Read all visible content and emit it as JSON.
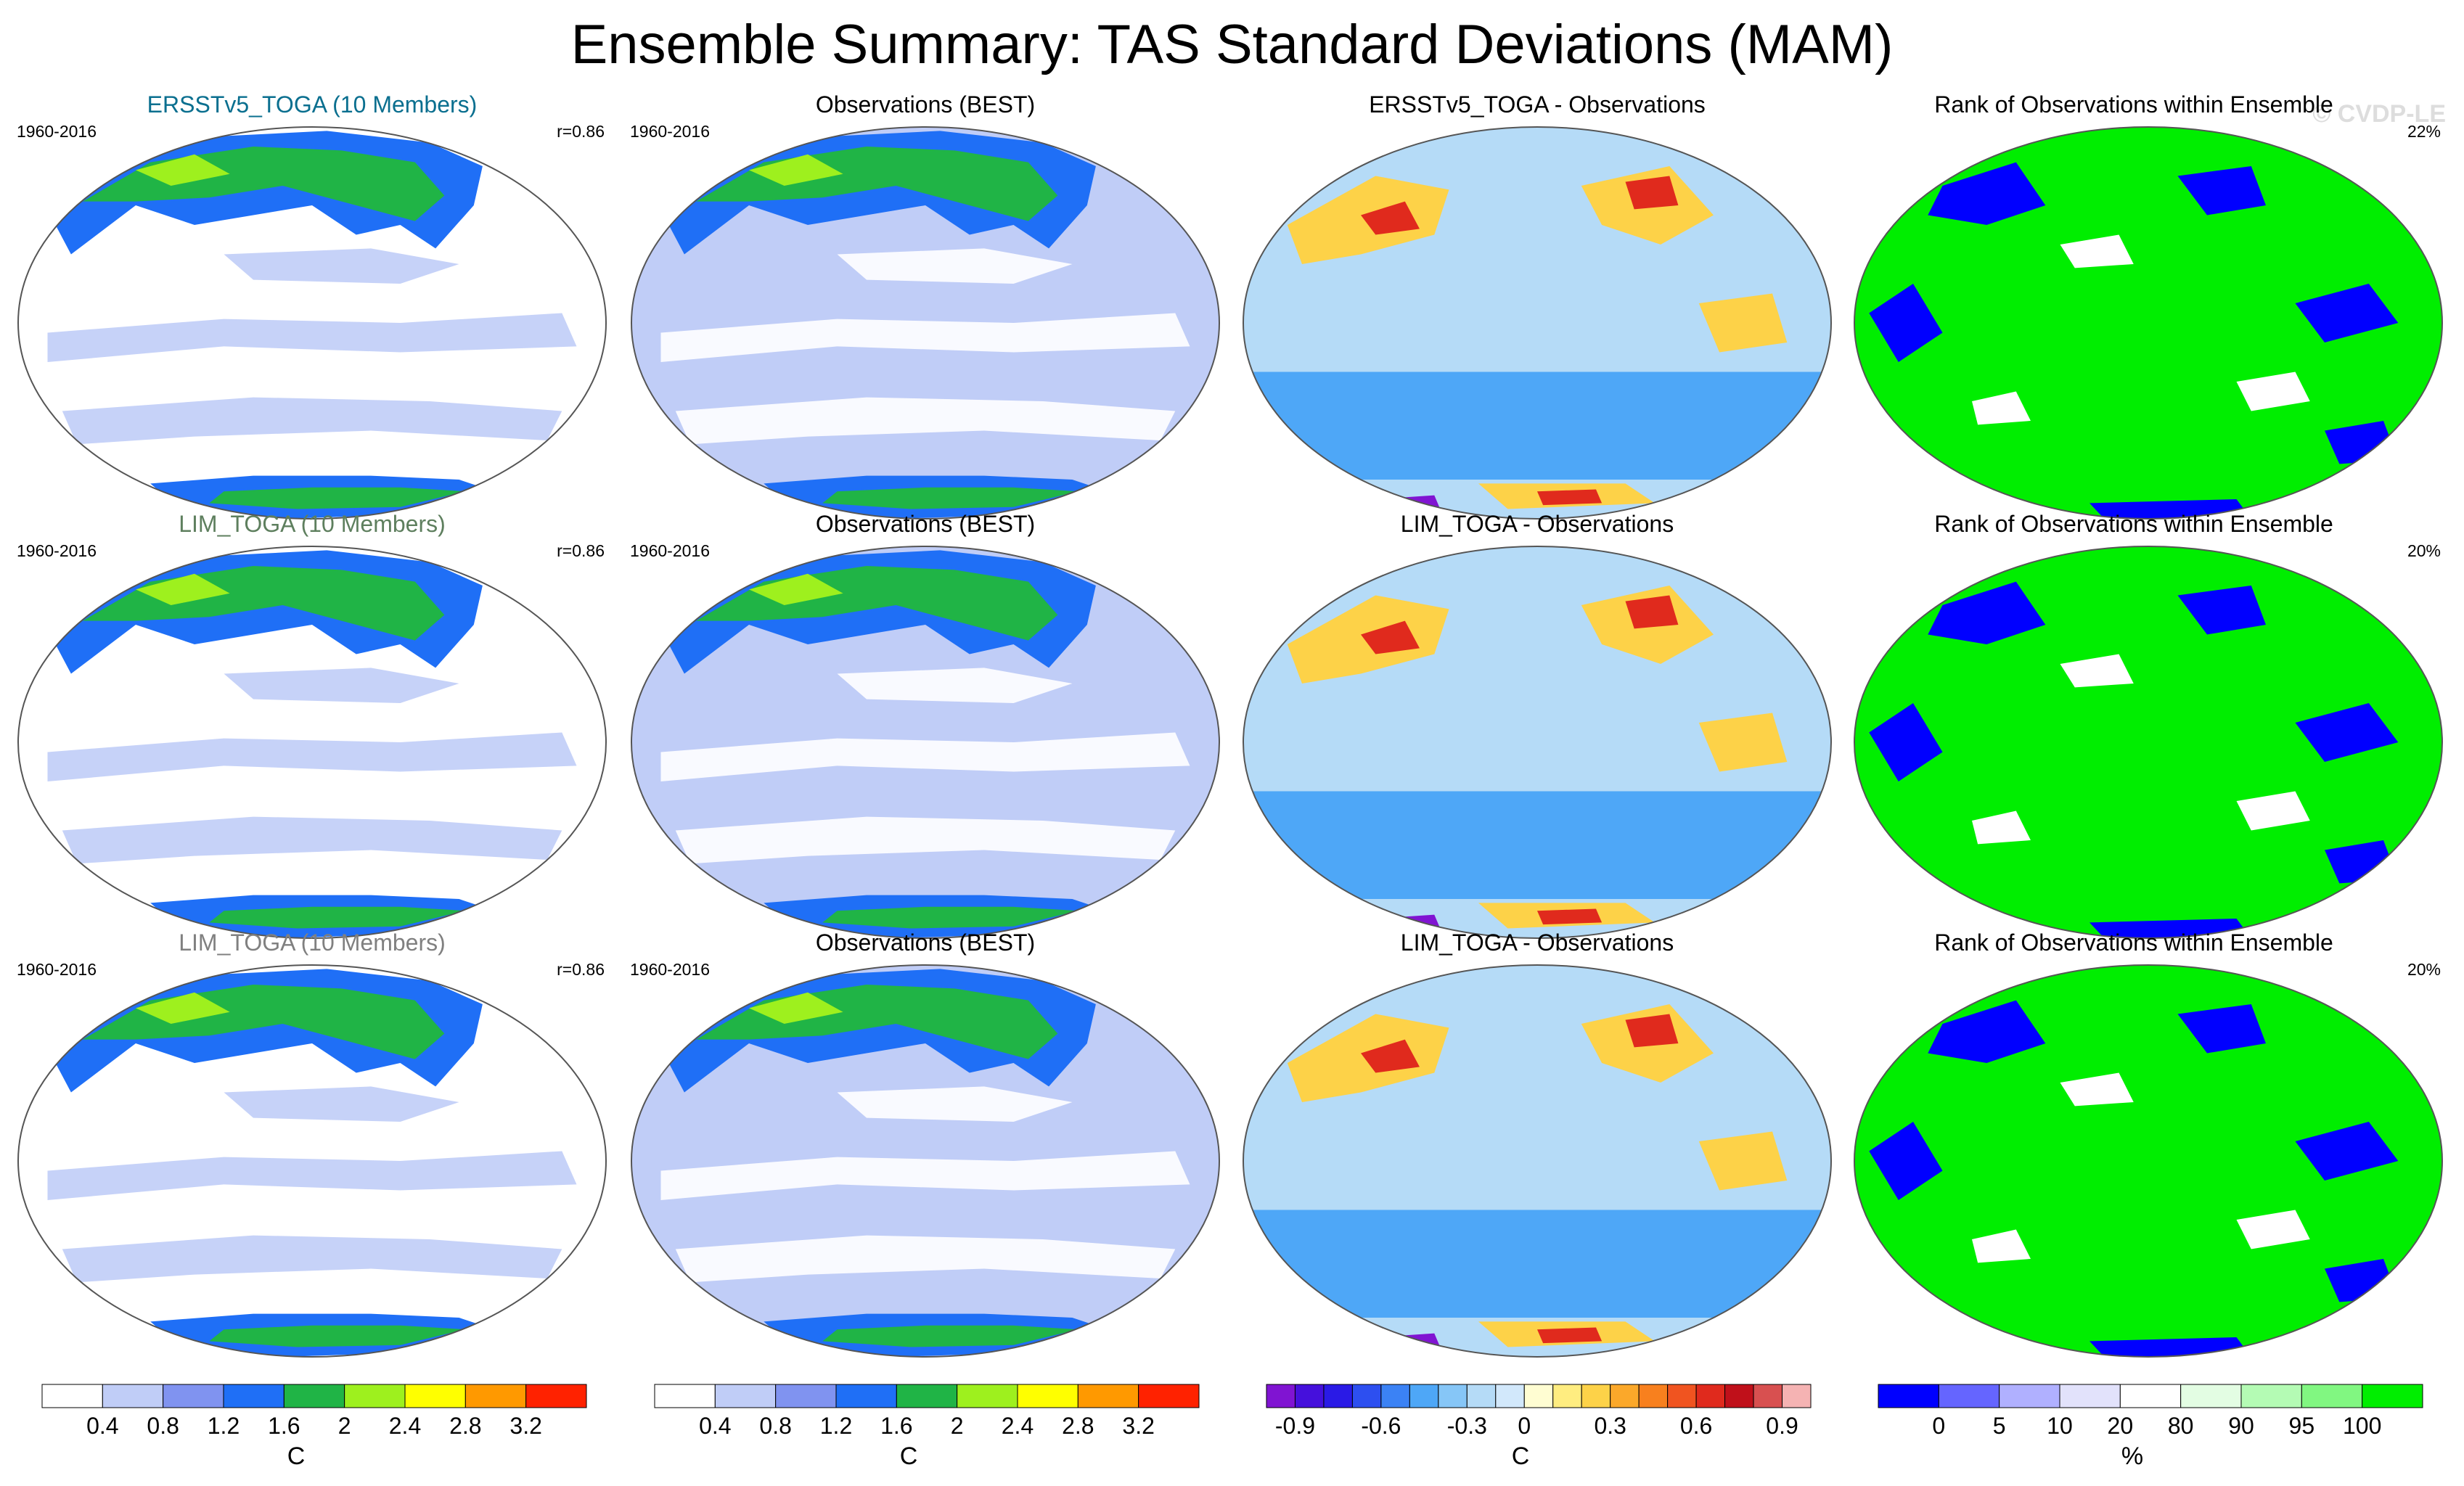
{
  "title": "Ensemble Summary: TAS Standard Deviations (MAM)",
  "watermark": "© CVDP-LE",
  "colors": {
    "stddev": [
      "#ffffff",
      "#c0cdf7",
      "#8093f0",
      "#1f6ff6",
      "#20b446",
      "#9ef01e",
      "#ffff00",
      "#ff9900",
      "#ff2200"
    ],
    "diff": [
      "#8014d2",
      "#4510dc",
      "#2a1ae6",
      "#2d4ff0",
      "#3b82f5",
      "#4ea7f7",
      "#86c6f7",
      "#b5dbf7",
      "#d2e8fb",
      "#fffdd2",
      "#ffed80",
      "#fdd248",
      "#fba82a",
      "#f8801e",
      "#f05420",
      "#e02a1d",
      "#c0101a",
      "#d85050",
      "#f5b3b3"
    ],
    "rank": [
      "#0000ff",
      "#6565ff",
      "#b0b0ff",
      "#e2e2fb",
      "#ffffff",
      "#e3fde3",
      "#b4fbb4",
      "#81f781",
      "#00ee00"
    ],
    "ocean_white": "#ffffff",
    "ocean_pale": "#c0cdf7",
    "band_green": "#20b446",
    "band_blue": "#1f6ff6",
    "band_lime": "#9ef01e",
    "title_blue": "#0a6f8f",
    "title_green": "#5e7f5e",
    "title_gray": "#808080"
  },
  "chart_data": [
    {
      "type": "heatmap",
      "row": 1,
      "col": 1,
      "title": "ERSSTv5_TOGA (10 Members)",
      "title_color": "#0a6f8f",
      "period": "1960-2016",
      "corner": "r=0.86",
      "palette": "stddev",
      "units": "C"
    },
    {
      "type": "heatmap",
      "row": 1,
      "col": 2,
      "title": "Observations (BEST)",
      "title_color": "#000000",
      "period": "1960-2016",
      "corner": "",
      "palette": "stddev",
      "units": "C"
    },
    {
      "type": "heatmap",
      "row": 1,
      "col": 3,
      "title": "ERSSTv5_TOGA - Observations",
      "title_color": "#000000",
      "period": "",
      "corner": "",
      "palette": "diff",
      "units": "C"
    },
    {
      "type": "heatmap",
      "row": 1,
      "col": 4,
      "title": "Rank of Observations within Ensemble",
      "title_color": "#000000",
      "period": "",
      "corner": "22%",
      "palette": "rank",
      "units": "%"
    },
    {
      "type": "heatmap",
      "row": 2,
      "col": 1,
      "title": "LIM_TOGA (10 Members)",
      "title_color": "#5e7f5e",
      "period": "1960-2016",
      "corner": "r=0.86",
      "palette": "stddev",
      "units": "C"
    },
    {
      "type": "heatmap",
      "row": 2,
      "col": 2,
      "title": "Observations (BEST)",
      "title_color": "#000000",
      "period": "1960-2016",
      "corner": "",
      "palette": "stddev",
      "units": "C"
    },
    {
      "type": "heatmap",
      "row": 2,
      "col": 3,
      "title": "LIM_TOGA - Observations",
      "title_color": "#000000",
      "period": "",
      "corner": "",
      "palette": "diff",
      "units": "C"
    },
    {
      "type": "heatmap",
      "row": 2,
      "col": 4,
      "title": "Rank of Observations within Ensemble",
      "title_color": "#000000",
      "period": "",
      "corner": "20%",
      "palette": "rank",
      "units": "%"
    },
    {
      "type": "heatmap",
      "row": 3,
      "col": 1,
      "title": "LIM_TOGA (10 Members)",
      "title_color": "#808080",
      "period": "1960-2016",
      "corner": "r=0.86",
      "palette": "stddev",
      "units": "C"
    },
    {
      "type": "heatmap",
      "row": 3,
      "col": 2,
      "title": "Observations (BEST)",
      "title_color": "#000000",
      "period": "1960-2016",
      "corner": "",
      "palette": "stddev",
      "units": "C"
    },
    {
      "type": "heatmap",
      "row": 3,
      "col": 3,
      "title": "LIM_TOGA - Observations",
      "title_color": "#000000",
      "period": "",
      "corner": "",
      "palette": "diff",
      "units": "C"
    },
    {
      "type": "heatmap",
      "row": 3,
      "col": 4,
      "title": "Rank of Observations within Ensemble",
      "title_color": "#000000",
      "period": "",
      "corner": "20%",
      "palette": "rank",
      "units": "%"
    }
  ],
  "colorbars": [
    {
      "palette": "stddev",
      "units": "C",
      "ticks": [
        "0.4",
        "0.8",
        "1.2",
        "1.6",
        "2",
        "2.4",
        "2.8",
        "3.2"
      ]
    },
    {
      "palette": "stddev",
      "units": "C",
      "ticks": [
        "0.4",
        "0.8",
        "1.2",
        "1.6",
        "2",
        "2.4",
        "2.8",
        "3.2"
      ]
    },
    {
      "palette": "diff",
      "units": "C",
      "ticks": [
        "-0.9",
        "-0.6",
        "-0.3",
        "0",
        "0.3",
        "0.6",
        "0.9"
      ],
      "tick_after_box": [
        1,
        4,
        7,
        9,
        12,
        15,
        18
      ]
    },
    {
      "palette": "rank",
      "units": "%",
      "ticks": [
        "0",
        "5",
        "10",
        "20",
        "80",
        "90",
        "95",
        "100"
      ]
    }
  ]
}
